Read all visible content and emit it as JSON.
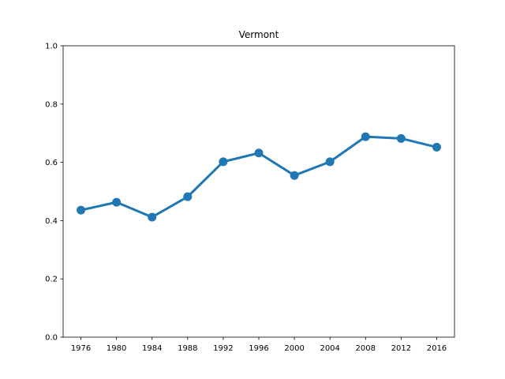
{
  "chart_data": {
    "type": "line",
    "title": "Vermont",
    "xlabel": "",
    "ylabel": "",
    "categories": [
      "1976",
      "1980",
      "1984",
      "1988",
      "1992",
      "1996",
      "2000",
      "2004",
      "2008",
      "2012",
      "2016"
    ],
    "series": [
      {
        "values": [
          0.436,
          0.463,
          0.412,
          0.482,
          0.602,
          0.632,
          0.555,
          0.602,
          0.688,
          0.682,
          0.652
        ],
        "color": "#1f77b4"
      }
    ],
    "ylim": [
      0,
      1.0
    ],
    "yticks": [
      "0.0",
      "0.2",
      "0.4",
      "0.6",
      "0.8",
      "1.0"
    ],
    "grid": false,
    "legend": "none"
  }
}
